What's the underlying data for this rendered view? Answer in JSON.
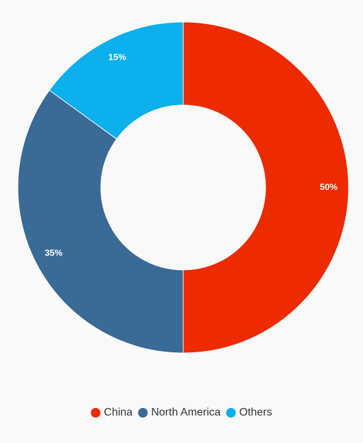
{
  "chart_data": {
    "type": "donut",
    "categories": [
      "China",
      "North America",
      "Others"
    ],
    "values": [
      50,
      35,
      15
    ],
    "value_labels": [
      "50%",
      "35%",
      "15%"
    ],
    "colors": [
      "#ee2a00",
      "#3a6a96",
      "#0bb0ec"
    ],
    "legend": "bottom"
  }
}
